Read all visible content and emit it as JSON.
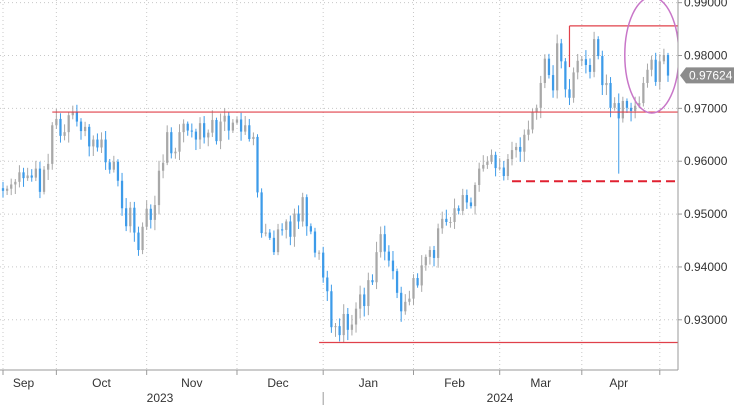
{
  "colors": {
    "up": "#a8a8a8",
    "down": "#3d9be9",
    "level_line": "#e0404a",
    "dashed_level": "#e02030",
    "ellipse": "#c876c8",
    "grid": "#c8c8c8",
    "last_price_badge": "#8c8c8c"
  },
  "chart_data": {
    "type": "candlestick",
    "y_axis_side": "right",
    "ylim": [
      0.9205,
      0.9905
    ],
    "grid": "dotted",
    "y_ticks": [
      "0.99000",
      "0.98000",
      "0.97000",
      "0.96000",
      "0.95000",
      "0.94000",
      "0.93000"
    ],
    "x_ticks": [
      "Sep",
      "Oct",
      "Nov",
      "Dec",
      "Jan",
      "Feb",
      "Mar",
      "Apr"
    ],
    "year_labels": [
      "2023",
      "2024"
    ],
    "last_price": "0.97624",
    "closes": [
      0.9544,
      0.9548,
      0.9556,
      0.9561,
      0.9579,
      0.9568,
      0.9573,
      0.9569,
      0.9586,
      0.9542,
      0.9584,
      0.9595,
      0.9668,
      0.968,
      0.9648,
      0.9655,
      0.9687,
      0.9694,
      0.9675,
      0.9657,
      0.9665,
      0.9628,
      0.9641,
      0.9626,
      0.9641,
      0.9598,
      0.9584,
      0.9599,
      0.9563,
      0.9511,
      0.9477,
      0.9512,
      0.9465,
      0.9432,
      0.9476,
      0.951,
      0.9489,
      0.9517,
      0.9582,
      0.9597,
      0.9655,
      0.9615,
      0.9618,
      0.9655,
      0.9671,
      0.9658,
      0.9656,
      0.9641,
      0.9672,
      0.9645,
      0.9654,
      0.9678,
      0.9638,
      0.9675,
      0.9686,
      0.9658,
      0.9673,
      0.9679,
      0.9656,
      0.9668,
      0.9642,
      0.9646,
      0.9541,
      0.9464,
      0.9465,
      0.9455,
      0.9428,
      0.9471,
      0.947,
      0.9486,
      0.9457,
      0.9501,
      0.9486,
      0.9532,
      0.9477,
      0.9467,
      0.9427,
      0.9427,
      0.938,
      0.9354,
      0.9286,
      0.9288,
      0.9271,
      0.9311,
      0.9281,
      0.9291,
      0.9321,
      0.9348,
      0.9326,
      0.9375,
      0.9371,
      0.9428,
      0.9462,
      0.9429,
      0.9412,
      0.9392,
      0.9351,
      0.9316,
      0.9334,
      0.934,
      0.9379,
      0.9365,
      0.9403,
      0.9419,
      0.9432,
      0.9417,
      0.9473,
      0.9491,
      0.9485,
      0.9485,
      0.9511,
      0.9506,
      0.9536,
      0.9522,
      0.9515,
      0.9555,
      0.9586,
      0.9593,
      0.9599,
      0.9612,
      0.9587,
      0.9588,
      0.9572,
      0.9604,
      0.9621,
      0.9627,
      0.9618,
      0.965,
      0.966,
      0.9694,
      0.9701,
      0.9748,
      0.9794,
      0.9763,
      0.9734,
      0.9823,
      0.9789,
      0.9736,
      0.972,
      0.9768,
      0.979,
      0.9793,
      0.9782,
      0.9769,
      0.9831,
      0.9799,
      0.9744,
      0.9748,
      0.9701,
      0.971,
      0.9681,
      0.9714,
      0.9701,
      0.9695,
      0.9705,
      0.971,
      0.9748,
      0.9773,
      0.9792,
      0.975,
      0.9789,
      0.9801,
      0.9762
    ],
    "levels": [
      {
        "y": 0.9693,
        "x_start_index": 12,
        "style": "solid"
      },
      {
        "y": 0.9856,
        "x_start_index": 138,
        "style": "solid"
      },
      {
        "y": 0.9562,
        "x_start_index": 124,
        "style": "dashed"
      },
      {
        "y": 0.9257,
        "x_start_index": 77,
        "style": "solid"
      }
    ],
    "highlight_ellipse": {
      "x_index": 160,
      "y": 0.9801
    }
  }
}
